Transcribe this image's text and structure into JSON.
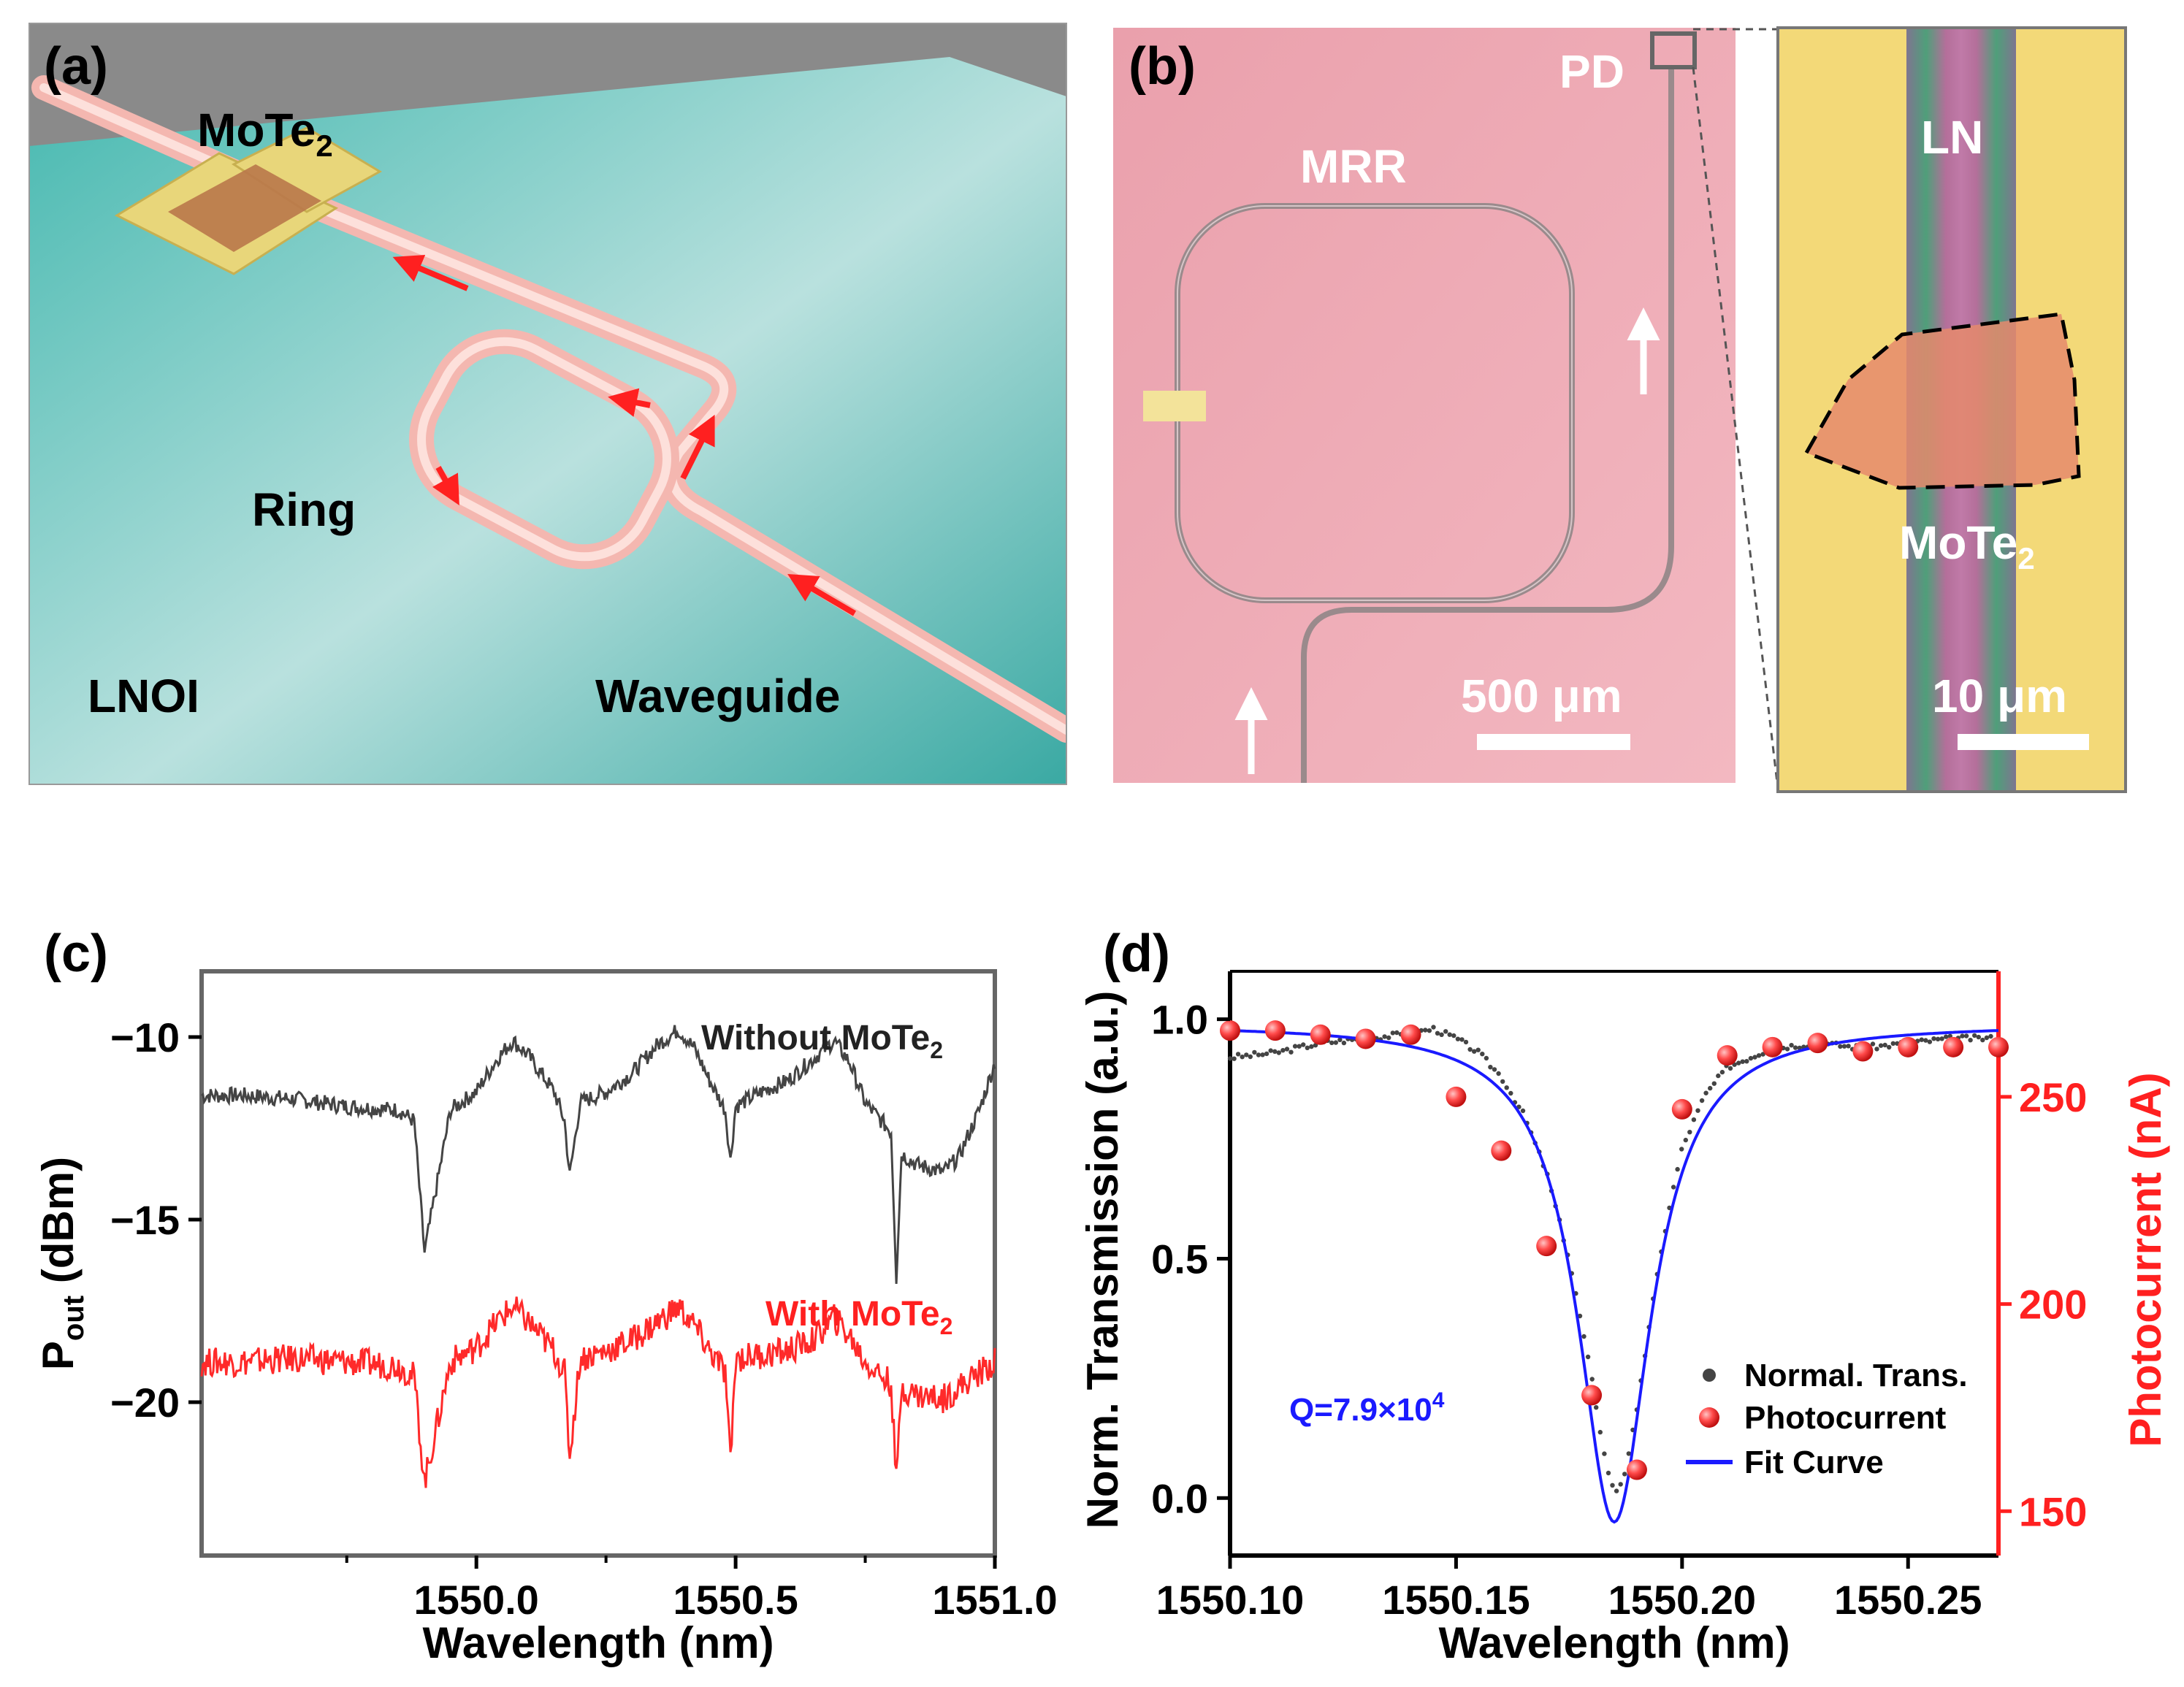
{
  "panels": {
    "a": {
      "label": "(a)",
      "material": "MoTe",
      "material_sub": "2",
      "ring": "Ring",
      "substrate": "LNOI",
      "waveguide": "Waveguide"
    },
    "b": {
      "label": "(b)",
      "mrr": "MRR",
      "pd": "PD",
      "scalebar": "500 μm",
      "inset_ln": "LN",
      "inset_material": "MoTe",
      "inset_material_sub": "2",
      "inset_scalebar": "10 μm"
    },
    "c": {
      "label": "(c)"
    },
    "d": {
      "label": "(d)"
    }
  },
  "chart_data": [
    {
      "panel": "c",
      "type": "line",
      "xlabel": "Wavelength (nm)",
      "ylabel": "P",
      "ylabel_sub": "out",
      "ylabel_unit": " (dBm)",
      "xlim": [
        1549.47,
        1551.0
      ],
      "ylim": [
        -24.2,
        -8.2
      ],
      "xticks": [
        1550.0,
        1550.5,
        1551.0
      ],
      "xtick_labels": [
        "1550.0",
        "1550.5",
        "1551.0"
      ],
      "yticks": [
        -10,
        -15,
        -20
      ],
      "ytick_labels": [
        "−10",
        "−15",
        "−20"
      ],
      "series": [
        {
          "name": "Without MoTe",
          "name_sub": "2",
          "color": "#444444",
          "x": [
            1549.47,
            1549.55,
            1549.65,
            1549.75,
            1549.85,
            1549.88,
            1549.9,
            1549.95,
            1550.0,
            1550.04,
            1550.07,
            1550.1,
            1550.15,
            1550.17,
            1550.18,
            1550.2,
            1550.25,
            1550.3,
            1550.35,
            1550.39,
            1550.42,
            1550.45,
            1550.48,
            1550.49,
            1550.5,
            1550.55,
            1550.6,
            1550.65,
            1550.69,
            1550.72,
            1550.75,
            1550.8,
            1550.81,
            1550.82,
            1550.85,
            1550.9,
            1550.93,
            1550.97,
            1551.0
          ],
          "y": [
            -11.6,
            -11.6,
            -11.7,
            -11.9,
            -12.0,
            -12.3,
            -15.9,
            -12.0,
            -11.5,
            -10.6,
            -10.1,
            -10.5,
            -11.5,
            -12.3,
            -13.8,
            -11.8,
            -11.5,
            -11.0,
            -10.2,
            -9.8,
            -10.3,
            -11.2,
            -12.0,
            -13.4,
            -11.9,
            -11.5,
            -11.2,
            -10.6,
            -10.1,
            -10.7,
            -11.8,
            -12.6,
            -16.6,
            -13.2,
            -13.5,
            -13.7,
            -13.3,
            -12.0,
            -10.7
          ]
        },
        {
          "name": "With MoTe",
          "name_sub": "2",
          "color": "#ff2a2a",
          "x": [
            1549.47,
            1549.55,
            1549.65,
            1549.75,
            1549.85,
            1549.88,
            1549.9,
            1549.95,
            1550.0,
            1550.04,
            1550.07,
            1550.1,
            1550.15,
            1550.17,
            1550.18,
            1550.2,
            1550.25,
            1550.3,
            1550.35,
            1550.39,
            1550.42,
            1550.45,
            1550.48,
            1550.49,
            1550.5,
            1550.55,
            1550.6,
            1550.65,
            1550.69,
            1550.72,
            1550.75,
            1550.8,
            1550.81,
            1550.82,
            1550.85,
            1550.9,
            1550.93,
            1550.97,
            1551.0
          ],
          "y": [
            -18.9,
            -18.9,
            -18.8,
            -18.9,
            -19.0,
            -19.3,
            -22.2,
            -18.9,
            -18.5,
            -17.8,
            -17.4,
            -17.8,
            -18.6,
            -19.2,
            -21.5,
            -18.8,
            -18.6,
            -18.3,
            -17.8,
            -17.4,
            -17.9,
            -18.6,
            -19.2,
            -21.7,
            -18.8,
            -18.7,
            -18.6,
            -18.3,
            -17.7,
            -18.2,
            -18.9,
            -19.5,
            -22.2,
            -19.6,
            -19.8,
            -19.9,
            -19.6,
            -19.2,
            -18.9
          ]
        }
      ]
    },
    {
      "panel": "d",
      "type": "scatter",
      "xlabel": "Wavelength (nm)",
      "ylabel_left": "Norm. Transmission (a.u.)",
      "ylabel_right": "Photocurrent (nA)",
      "xlim": [
        1550.1,
        1550.27
      ],
      "ylim_left": [
        -0.12,
        1.1
      ],
      "ylim_right": [
        139.3,
        280.3
      ],
      "xticks": [
        1550.1,
        1550.15,
        1550.2,
        1550.25
      ],
      "xtick_labels": [
        "1550.10",
        "1550.15",
        "1550.20",
        "1550.25"
      ],
      "yticks_left": [
        0.0,
        0.5,
        1.0
      ],
      "ytick_labels_left": [
        "0.0",
        "0.5",
        "1.0"
      ],
      "yticks_right": [
        150,
        200,
        250
      ],
      "ytick_labels_right": [
        "150",
        "200",
        "250"
      ],
      "annotation": "Q=7.9×10",
      "annotation_sup": "4",
      "annotation_color": "#1a1aff",
      "series": [
        {
          "name": "Normal. Trans.",
          "color": "#444444",
          "axis": "left",
          "x": [
            1550.1,
            1550.11,
            1550.12,
            1550.13,
            1550.14,
            1550.145,
            1550.15,
            1550.155,
            1550.16,
            1550.165,
            1550.17,
            1550.175,
            1550.18,
            1550.183,
            1550.185,
            1550.187,
            1550.19,
            1550.193,
            1550.197,
            1550.2,
            1550.205,
            1550.21,
            1550.22,
            1550.23,
            1550.24,
            1550.25,
            1550.26,
            1550.27
          ],
          "y": [
            0.92,
            0.93,
            0.95,
            0.96,
            0.97,
            0.98,
            0.96,
            0.93,
            0.88,
            0.8,
            0.68,
            0.5,
            0.25,
            0.08,
            0.01,
            0.04,
            0.18,
            0.38,
            0.6,
            0.73,
            0.84,
            0.9,
            0.94,
            0.95,
            0.94,
            0.95,
            0.96,
            0.96
          ]
        },
        {
          "name": "Photocurrent",
          "color": "#ff2a2a",
          "axis": "right",
          "x": [
            1550.1,
            1550.11,
            1550.12,
            1550.13,
            1550.14,
            1550.15,
            1550.16,
            1550.17,
            1550.18,
            1550.19,
            1550.2,
            1550.21,
            1550.22,
            1550.23,
            1550.24,
            1550.25,
            1550.26,
            1550.27
          ],
          "y": [
            266,
            266,
            265,
            264,
            265,
            250,
            237,
            214,
            178,
            160,
            247,
            260,
            262,
            263,
            261,
            262,
            262,
            262
          ]
        },
        {
          "name": "Fit Curve",
          "color": "#1a1aff",
          "axis": "left",
          "model": "lorentzian",
          "center": 1550.185,
          "fwhm": 0.0196,
          "depth": 1.04,
          "baseline": 0.99
        }
      ]
    }
  ]
}
